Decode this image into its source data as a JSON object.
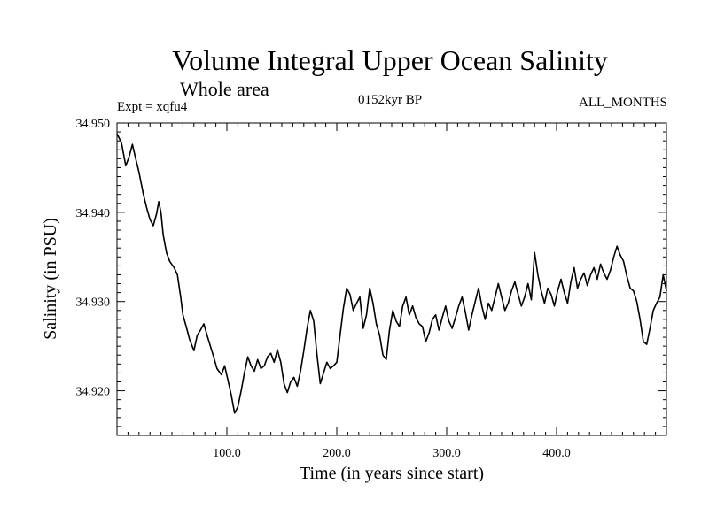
{
  "figure": {
    "title": "Volume Integral Upper Ocean Salinity",
    "subtitle": "Whole area",
    "experiment": "Expt = xqfu4",
    "period": "0152kyr BP",
    "months": "ALL_MONTHS"
  },
  "chart_data": {
    "type": "line",
    "title": "Volume Integral Upper Ocean Salinity",
    "xlabel": "Time (in years since start)",
    "ylabel": "Salinity (in PSU)",
    "xlim": [
      0,
      500
    ],
    "ylim": [
      34.915,
      34.95
    ],
    "xticks": [
      100,
      200,
      300,
      400
    ],
    "xtick_labels": [
      "100.0",
      "200.0",
      "300.0",
      "400.0"
    ],
    "yticks": [
      34.92,
      34.93,
      34.94,
      34.95
    ],
    "ytick_labels": [
      "34.920",
      "34.930",
      "34.940",
      "34.950"
    ],
    "grid": false,
    "series": [
      {
        "name": "Salinity",
        "color": "#000000",
        "x": [
          0,
          4,
          8,
          11,
          14,
          17,
          20,
          24,
          27,
          30,
          33,
          36,
          38,
          40,
          42,
          45,
          48,
          52,
          55,
          58,
          60,
          63,
          66,
          70,
          73,
          76,
          79,
          82,
          85,
          88,
          91,
          95,
          98,
          101,
          104,
          107,
          110,
          113,
          116,
          119,
          122,
          125,
          128,
          131,
          134,
          137,
          140,
          143,
          146,
          149,
          152,
          155,
          158,
          161,
          164,
          167,
          170,
          173,
          176,
          179,
          182,
          185,
          188,
          191,
          194,
          197,
          200,
          203,
          206,
          209,
          212,
          215,
          218,
          221,
          224,
          227,
          230,
          233,
          236,
          239,
          242,
          245,
          248,
          251,
          254,
          257,
          260,
          263,
          266,
          269,
          272,
          275,
          278,
          281,
          284,
          287,
          290,
          293,
          296,
          299,
          302,
          305,
          308,
          311,
          314,
          317,
          320,
          323,
          326,
          329,
          332,
          335,
          338,
          341,
          344,
          347,
          350,
          353,
          356,
          359,
          362,
          365,
          368,
          371,
          374,
          377,
          380,
          383,
          386,
          389,
          392,
          395,
          398,
          401,
          404,
          407,
          410,
          413,
          416,
          419,
          422,
          425,
          428,
          431,
          434,
          437,
          440,
          443,
          446,
          449,
          452,
          455,
          458,
          461,
          464,
          467,
          470,
          473,
          476,
          479,
          482,
          485,
          488,
          491,
          494,
          497,
          500
        ],
        "values": [
          34.9488,
          34.9478,
          34.9452,
          34.9462,
          34.9476,
          34.946,
          34.9445,
          34.942,
          34.9405,
          34.9392,
          34.9385,
          34.9398,
          34.9412,
          34.94,
          34.9375,
          34.9355,
          34.9345,
          34.9338,
          34.933,
          34.9305,
          34.9285,
          34.9272,
          34.9258,
          34.9245,
          34.9262,
          34.9268,
          34.9275,
          34.9262,
          34.925,
          34.9238,
          34.9225,
          34.9218,
          34.9228,
          34.9212,
          34.9195,
          34.9175,
          34.9182,
          34.92,
          34.922,
          34.9238,
          34.9228,
          34.9222,
          34.9235,
          34.9225,
          34.9228,
          34.9238,
          34.9242,
          34.9232,
          34.9246,
          34.9232,
          34.9208,
          34.9198,
          34.921,
          34.9215,
          34.9205,
          34.9222,
          34.9245,
          34.927,
          34.929,
          34.9278,
          34.924,
          34.9208,
          34.922,
          34.9232,
          34.9225,
          34.9228,
          34.9232,
          34.9262,
          34.9292,
          34.9315,
          34.9308,
          34.929,
          34.9298,
          34.9305,
          34.927,
          34.9285,
          34.9315,
          34.9298,
          34.9275,
          34.9262,
          34.924,
          34.9235,
          34.9268,
          34.929,
          34.9278,
          34.9272,
          34.9295,
          34.9305,
          34.9285,
          34.9295,
          34.9282,
          34.9275,
          34.9272,
          34.9255,
          34.9265,
          34.928,
          34.9285,
          34.9268,
          34.9282,
          34.9295,
          34.9278,
          34.927,
          34.9282,
          34.9295,
          34.9305,
          34.9288,
          34.9268,
          34.9285,
          34.93,
          34.9315,
          34.9295,
          34.928,
          34.9298,
          34.929,
          34.9305,
          34.932,
          34.9305,
          34.929,
          34.9298,
          34.9312,
          34.9322,
          34.9308,
          34.9295,
          34.9305,
          34.932,
          34.9302,
          34.9355,
          34.933,
          34.9312,
          34.9298,
          34.9315,
          34.9308,
          34.9295,
          34.9312,
          34.9325,
          34.931,
          34.9298,
          34.9322,
          34.9338,
          34.9315,
          34.9325,
          34.9332,
          34.9318,
          34.933,
          34.9338,
          34.9325,
          34.9342,
          34.9332,
          34.9325,
          34.9335,
          34.935,
          34.9362,
          34.9352,
          34.9345,
          34.9328,
          34.9315,
          34.9312,
          34.93,
          34.928,
          34.9255,
          34.9252,
          34.927,
          34.929,
          34.9298,
          34.9305,
          34.933,
          34.9312
        ]
      }
    ]
  }
}
